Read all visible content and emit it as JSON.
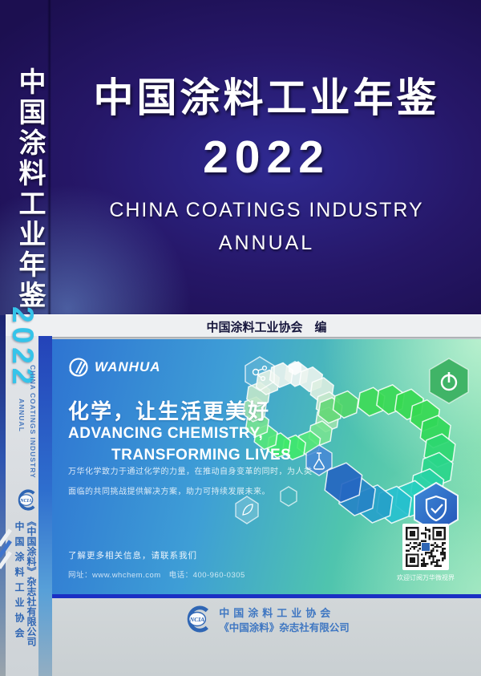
{
  "cover": {
    "title": "中国涂料工业年鉴",
    "year": "2022",
    "subtitle_line1": "CHINA COATINGS INDUSTRY",
    "subtitle_line2": "ANNUAL",
    "editor": "中国涂料工业协会　编"
  },
  "spine": {
    "title": "中国涂料工业年鉴",
    "year": "2022",
    "subtitle_line1": "CHINA COATINGS INDUSTRY",
    "subtitle_line2": "ANNUAL",
    "logo": "NCIA",
    "org": "中国涂料工业协会",
    "publisher": "《中国涂料》杂志社有限公司"
  },
  "banner": {
    "brand": "WANHUA",
    "slogan": "化学，让生活更美好",
    "slogan_en_line1": "ADVANCING CHEMISTRY,",
    "slogan_en_line2": "TRANSFORMING LIVES",
    "body_line1": "万华化学致力于通过化学的力量，在推动自身变革的同时，为人类",
    "body_line2": "面临的共同挑战提供解决方案，助力可持续发展未来。",
    "contact_line1": "了解更多相关信息，请联系我们",
    "contact_line2": "网址：www.whchem.com　电话：400-960-0305",
    "qr_caption": "欢迎订阅万华微视界"
  },
  "footer": {
    "logo": "NCIA",
    "org": "中国涂料工业协会",
    "publisher": "《中国涂料》杂志社有限公司"
  },
  "colors": {
    "navy": "#1c0f50",
    "spine_year_cyan": "#35c4ea",
    "banner_blue": "#2e74d2",
    "banner_green": "#7adca8",
    "divider_blue": "#1b2fc4",
    "footer_text_blue": "#3f77c2",
    "band_bg": "#eef0f2"
  }
}
